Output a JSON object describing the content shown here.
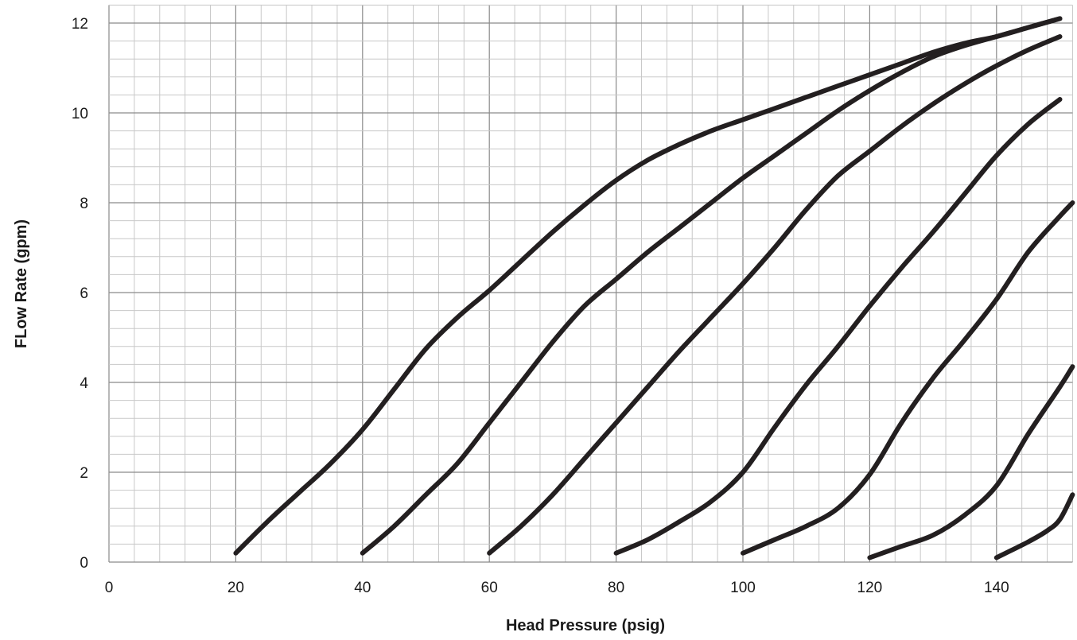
{
  "chart_data": {
    "type": "line",
    "title": "",
    "xlabel": "Head Pressure (psig)",
    "ylabel": "FLow Rate (gpm)",
    "xlim": [
      0,
      152
    ],
    "ylim": [
      0,
      12.4
    ],
    "xticks": [
      0,
      20,
      40,
      60,
      80,
      100,
      120,
      140
    ],
    "yticks": [
      0,
      2,
      4,
      6,
      8,
      10,
      12
    ],
    "x_tick_labels": [
      "0",
      "20",
      "40",
      "60",
      "80",
      "100",
      "120",
      "140"
    ],
    "y_tick_labels": [
      "0",
      "2",
      "4",
      "6",
      "8",
      "10",
      "12"
    ],
    "grid": true,
    "legend": "none",
    "line_color": "#231f20",
    "series": [
      {
        "x": [
          20,
          25,
          30,
          35,
          40,
          45,
          50,
          55,
          60,
          65,
          70,
          75,
          80,
          85,
          90,
          95,
          100,
          105,
          110,
          115,
          120,
          125,
          130,
          135,
          140,
          145,
          150
        ],
        "values": [
          0.2,
          0.9,
          1.55,
          2.2,
          2.95,
          3.85,
          4.75,
          5.45,
          6.05,
          6.7,
          7.35,
          7.95,
          8.5,
          8.95,
          9.3,
          9.6,
          9.85,
          10.1,
          10.35,
          10.6,
          10.85,
          11.1,
          11.35,
          11.55,
          11.7,
          11.9,
          12.1
        ]
      },
      {
        "x": [
          40,
          45,
          50,
          55,
          60,
          65,
          70,
          75,
          80,
          85,
          90,
          95,
          100,
          105,
          110,
          115,
          120,
          125,
          130,
          135,
          140,
          145,
          150
        ],
        "values": [
          0.2,
          0.8,
          1.5,
          2.2,
          3.1,
          4.0,
          4.9,
          5.7,
          6.3,
          6.9,
          7.45,
          8.0,
          8.55,
          9.05,
          9.55,
          10.05,
          10.5,
          10.9,
          11.25,
          11.5,
          11.7,
          11.9,
          12.1
        ]
      },
      {
        "x": [
          60,
          65,
          70,
          75,
          80,
          85,
          90,
          95,
          100,
          105,
          110,
          115,
          120,
          125,
          130,
          135,
          140,
          145,
          150
        ],
        "values": [
          0.2,
          0.8,
          1.5,
          2.3,
          3.1,
          3.9,
          4.7,
          5.45,
          6.2,
          7.0,
          7.85,
          8.6,
          9.15,
          9.7,
          10.2,
          10.65,
          11.05,
          11.4,
          11.7
        ]
      },
      {
        "x": [
          80,
          85,
          90,
          95,
          100,
          105,
          110,
          115,
          120,
          125,
          130,
          135,
          140,
          145,
          150
        ],
        "values": [
          0.2,
          0.5,
          0.9,
          1.35,
          2.0,
          3.0,
          3.95,
          4.8,
          5.7,
          6.55,
          7.35,
          8.2,
          9.05,
          9.75,
          10.3
        ]
      },
      {
        "x": [
          100,
          105,
          110,
          115,
          120,
          125,
          130,
          135,
          140,
          145,
          150,
          152
        ],
        "values": [
          0.2,
          0.5,
          0.8,
          1.2,
          1.95,
          3.1,
          4.1,
          4.95,
          5.85,
          6.9,
          7.7,
          8.0
        ]
      },
      {
        "x": [
          120,
          125,
          130,
          135,
          140,
          145,
          150,
          152
        ],
        "values": [
          0.1,
          0.35,
          0.6,
          1.05,
          1.7,
          2.85,
          3.9,
          4.35
        ]
      },
      {
        "x": [
          140,
          145,
          148,
          150,
          152
        ],
        "values": [
          0.1,
          0.45,
          0.7,
          0.95,
          1.5
        ]
      }
    ]
  }
}
